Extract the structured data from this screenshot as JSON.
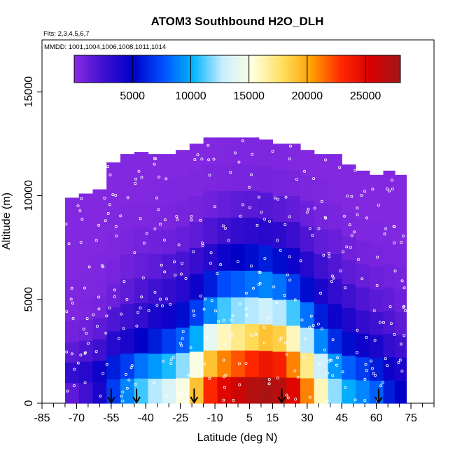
{
  "chart_data": {
    "type": "heatmap",
    "title": "ATOM3 Southbound H2O_DLH",
    "flights_label": "Flts: 2,3,4,5,6,7",
    "dates_label": "MMDD: 1001,1004,1006,1008,1011,1014",
    "xlabel": "Latitude (deg N)",
    "ylabel": "Altitude (m)",
    "xlim": [
      -85,
      85
    ],
    "ylim": [
      0,
      17500
    ],
    "x_ticks": [
      -85,
      -70,
      -55,
      -40,
      -25,
      -10,
      5,
      15,
      30,
      45,
      60,
      75
    ],
    "x_tick_labels": [
      "-85",
      "-70",
      "-55",
      "-40",
      "-25",
      "-10",
      "5",
      "15",
      "30",
      "45",
      "60",
      "75"
    ],
    "y_ticks": [
      0,
      5000,
      10000,
      15000
    ],
    "y_tick_labels": [
      "0",
      "5000",
      "10000",
      "15000"
    ],
    "colorbar": {
      "range": [
        0,
        28000
      ],
      "ticks": [
        5000,
        10000,
        15000,
        20000,
        25000
      ],
      "tick_labels": [
        "5000",
        "10000",
        "15000",
        "20000",
        "25000"
      ],
      "colors": [
        "#8a2be2",
        "#3d0fd0",
        "#0000c8",
        "#0050ff",
        "#00b4ff",
        "#c8eeff",
        "#ffffe0",
        "#ffe060",
        "#ffa000",
        "#ff2800",
        "#d80000",
        "#a01818"
      ]
    },
    "profile_markers_lat": [
      -55,
      -44,
      -19,
      19,
      61
    ],
    "latitude_bins": [
      {
        "lat": -72,
        "top": 9900,
        "values": [
          1500,
          3000,
          1500,
          800,
          400,
          350,
          300,
          300,
          280,
          250
        ]
      },
      {
        "lat": -66,
        "top": 10100,
        "values": [
          2500,
          3500,
          2000,
          1000,
          500,
          400,
          320,
          300,
          280,
          250
        ]
      },
      {
        "lat": -60,
        "top": 10300,
        "values": [
          4000,
          4500,
          2500,
          1500,
          700,
          450,
          350,
          300,
          280,
          250
        ]
      },
      {
        "lat": -54,
        "top": 11600,
        "values": [
          7000,
          6000,
          3500,
          2000,
          1000,
          600,
          400,
          320,
          280,
          250
        ]
      },
      {
        "lat": -48,
        "top": 12000,
        "values": [
          9000,
          7000,
          4000,
          2500,
          1500,
          900,
          500,
          350,
          300,
          250
        ]
      },
      {
        "lat": -42,
        "top": 12100,
        "values": [
          11000,
          8500,
          5000,
          3000,
          2000,
          1200,
          700,
          400,
          300,
          250
        ]
      },
      {
        "lat": -36,
        "top": 12000,
        "values": [
          12500,
          9500,
          6000,
          4000,
          2500,
          1500,
          900,
          450,
          320,
          260
        ]
      },
      {
        "lat": -30,
        "top": 12000,
        "values": [
          13500,
          10500,
          7000,
          4500,
          3000,
          2000,
          1000,
          500,
          350,
          260
        ]
      },
      {
        "lat": -24,
        "top": 12200,
        "values": [
          15000,
          12000,
          8000,
          5500,
          3500,
          2200,
          1200,
          600,
          380,
          280
        ]
      },
      {
        "lat": -18,
        "top": 12500,
        "values": [
          19000,
          15000,
          10000,
          7000,
          4500,
          2800,
          1500,
          700,
          400,
          300
        ]
      },
      {
        "lat": -12,
        "top": 12800,
        "values": [
          23000,
          19000,
          14000,
          9000,
          6000,
          3500,
          2000,
          900,
          450,
          300
        ]
      },
      {
        "lat": -6,
        "top": 12800,
        "values": [
          25000,
          21000,
          16000,
          11000,
          7500,
          4500,
          2500,
          1200,
          500,
          320
        ]
      },
      {
        "lat": 0,
        "top": 12800,
        "values": [
          26000,
          22000,
          17000,
          12000,
          8000,
          5000,
          3000,
          1500,
          600,
          350
        ]
      },
      {
        "lat": 6,
        "top": 12800,
        "values": [
          27000,
          23000,
          18000,
          12500,
          8500,
          5500,
          3200,
          1600,
          650,
          350
        ]
      },
      {
        "lat": 12,
        "top": 12700,
        "values": [
          27500,
          24000,
          19000,
          13000,
          9000,
          6000,
          3500,
          1800,
          700,
          380
        ]
      },
      {
        "lat": 18,
        "top": 12500,
        "values": [
          27000,
          23500,
          18500,
          12500,
          8500,
          5500,
          3200,
          1600,
          650,
          350
        ]
      },
      {
        "lat": 24,
        "top": 12500,
        "values": [
          25000,
          21000,
          16000,
          11000,
          7000,
          4500,
          2600,
          1300,
          550,
          320
        ]
      },
      {
        "lat": 30,
        "top": 12200,
        "values": [
          21000,
          17000,
          12500,
          8500,
          5500,
          3500,
          2000,
          1000,
          450,
          300
        ]
      },
      {
        "lat": 36,
        "top": 12000,
        "values": [
          16000,
          13000,
          9000,
          6000,
          4000,
          2500,
          1400,
          700,
          380,
          280
        ]
      },
      {
        "lat": 42,
        "top": 12000,
        "values": [
          12000,
          9500,
          6500,
          4500,
          3000,
          1900,
          1100,
          550,
          330,
          260
        ]
      },
      {
        "lat": 48,
        "top": 11500,
        "values": [
          10000,
          8000,
          5500,
          3800,
          2500,
          1500,
          900,
          450,
          300,
          250
        ]
      },
      {
        "lat": 54,
        "top": 11200,
        "values": [
          9000,
          7000,
          4500,
          3000,
          2000,
          1200,
          700,
          380,
          280,
          250
        ]
      },
      {
        "lat": 60,
        "top": 11000,
        "values": [
          8000,
          6000,
          4000,
          2500,
          1600,
          1000,
          600,
          350,
          270,
          240
        ]
      },
      {
        "lat": 66,
        "top": 11200,
        "values": [
          6000,
          4500,
          3000,
          2000,
          1300,
          800,
          500,
          320,
          260,
          240
        ]
      },
      {
        "lat": 70,
        "top": 11000,
        "values": [
          5000,
          4000,
          2500,
          1500,
          1000,
          700,
          450,
          300,
          250,
          240
        ]
      }
    ]
  }
}
